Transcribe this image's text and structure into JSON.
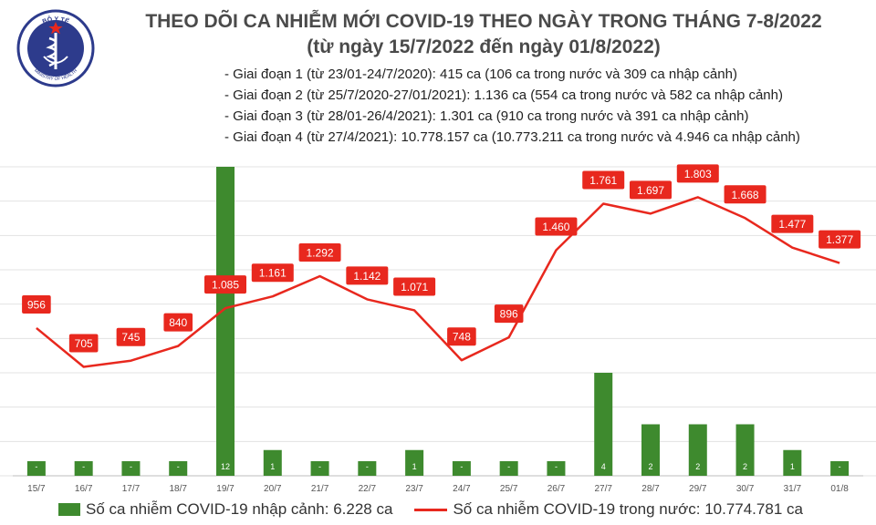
{
  "header": {
    "logo_text_top": "BỘ Y TẾ",
    "logo_text_bottom": "MINISTRY OF HEALTH",
    "title": "THEO DÕI CA NHIỄM MỚI COVID-19 THEO NGÀY TRONG THÁNG 7-8/2022",
    "subtitle": "(từ ngày 15/7/2022 đến ngày 01/8/2022)"
  },
  "notes": [
    "- Giai đoạn 1 (từ 23/01-24/7/2020): 415 ca (106 ca trong nước và 309 ca nhập cảnh)",
    "- Giai đoạn 2 (từ 25/7/2020-27/01/2021): 1.136 ca (554 ca trong nước và 582 ca nhập cảnh)",
    "- Giai đoạn 3 (từ 28/01-26/4/2021): 1.301 ca (910 ca trong nước và 391 ca nhập cảnh)",
    "- Giai đoạn 4 (từ 27/4/2021): 10.778.157 ca (10.773.211 ca trong nước và 4.946 ca nhập cảnh)"
  ],
  "legend": {
    "bar_label": "Số ca nhiễm COVID-19 nhập cảnh: 6.228 ca",
    "line_label": "Số ca nhiễm COVID-19 trong nước: 10.774.781 ca"
  },
  "colors": {
    "bar": "#3e8a2e",
    "line": "#e8281e",
    "label_box": "#e8281e",
    "title": "#4a4a4a"
  },
  "chart_data": {
    "type": "bar+line",
    "categories": [
      "15/7",
      "16/7",
      "17/7",
      "18/7",
      "19/7",
      "20/7",
      "21/7",
      "22/7",
      "23/7",
      "24/7",
      "25/7",
      "26/7",
      "27/7",
      "28/7",
      "29/7",
      "30/7",
      "31/7",
      "01/8"
    ],
    "series": [
      {
        "name": "Số ca nhiễm COVID-19 nhập cảnh: 6.228 ca",
        "type": "bar",
        "axis": "right",
        "values": [
          0,
          0,
          0,
          0,
          12,
          1,
          0,
          0,
          1,
          0,
          0,
          0,
          4,
          2,
          2,
          2,
          1,
          0
        ],
        "labels": [
          "-",
          "-",
          "-",
          "-",
          "12",
          "1",
          "-",
          "-",
          "1",
          "-",
          "-",
          "-",
          "4",
          "2",
          "2",
          "2",
          "1",
          "-"
        ]
      },
      {
        "name": "Số ca nhiễm COVID-19 trong nước: 10.774.781 ca",
        "type": "line",
        "axis": "left",
        "values": [
          956,
          705,
          745,
          840,
          1085,
          1161,
          1292,
          1142,
          1071,
          748,
          896,
          1460,
          1761,
          1697,
          1803,
          1668,
          1477,
          1377
        ],
        "labels": [
          "956",
          "705",
          "745",
          "840",
          "1.085",
          "1.161",
          "1.292",
          "1.142",
          "1.071",
          "748",
          "896",
          "1.460",
          "1.761",
          "1.697",
          "1.803",
          "1.668",
          "1.477",
          "1.377"
        ]
      }
    ],
    "ylim_left": [
      0,
      2000
    ],
    "ylim_right": [
      0,
      12
    ],
    "grid": true
  }
}
